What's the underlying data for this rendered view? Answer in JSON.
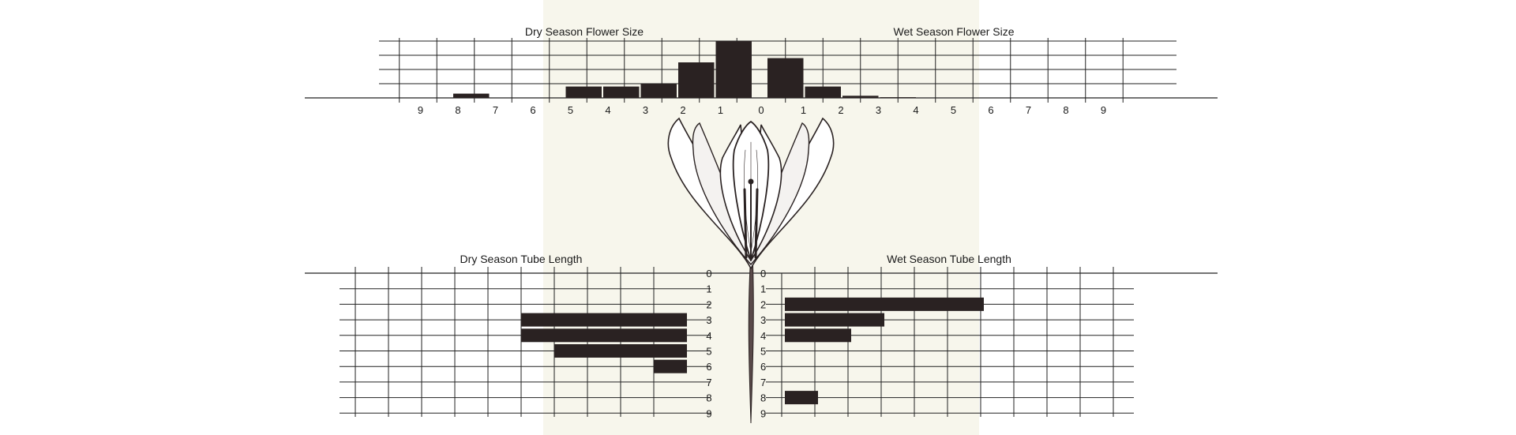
{
  "colors": {
    "bar": "#2a2222",
    "grid": "#222222",
    "panel": "#f7f6ec",
    "background": "#ffffff"
  },
  "illustration": {
    "icon": "flower-icon"
  },
  "chart_data": [
    {
      "type": "bar",
      "orientation": "vertical-butterfly",
      "title": "Dry Season Flower Size",
      "categories": [
        "9",
        "8",
        "7",
        "6",
        "5",
        "4",
        "3",
        "2",
        "1"
      ],
      "values": [
        0,
        0.3,
        0,
        0,
        0.8,
        0.8,
        1,
        2.5,
        4
      ],
      "ylim": [
        0,
        4
      ]
    },
    {
      "type": "bar",
      "orientation": "vertical-butterfly",
      "title": "Wet Season Flower Size",
      "categories": [
        "1",
        "2",
        "3",
        "4",
        "5",
        "6",
        "7",
        "8",
        "9"
      ],
      "values": [
        2.8,
        0.8,
        0.15,
        0.05,
        0,
        0,
        0,
        0,
        0
      ],
      "ylim": [
        0,
        4
      ]
    },
    {
      "type": "bar",
      "orientation": "horizontal",
      "title": "Dry Season Tube Length",
      "categories": [
        "0",
        "1",
        "2",
        "3",
        "4",
        "5",
        "6",
        "7",
        "8",
        "9"
      ],
      "values": [
        0,
        0,
        0,
        5,
        5,
        4,
        1,
        0,
        0,
        0
      ],
      "xlim": [
        0,
        10
      ]
    },
    {
      "type": "bar",
      "orientation": "horizontal",
      "title": "Wet Season Tube Length",
      "categories": [
        "0",
        "1",
        "2",
        "3",
        "4",
        "5",
        "6",
        "7",
        "8",
        "9"
      ],
      "values": [
        0,
        0,
        6,
        3,
        2,
        0,
        0,
        0,
        1,
        0
      ],
      "xlim": [
        0,
        10
      ]
    }
  ],
  "center_tick_label": "0"
}
